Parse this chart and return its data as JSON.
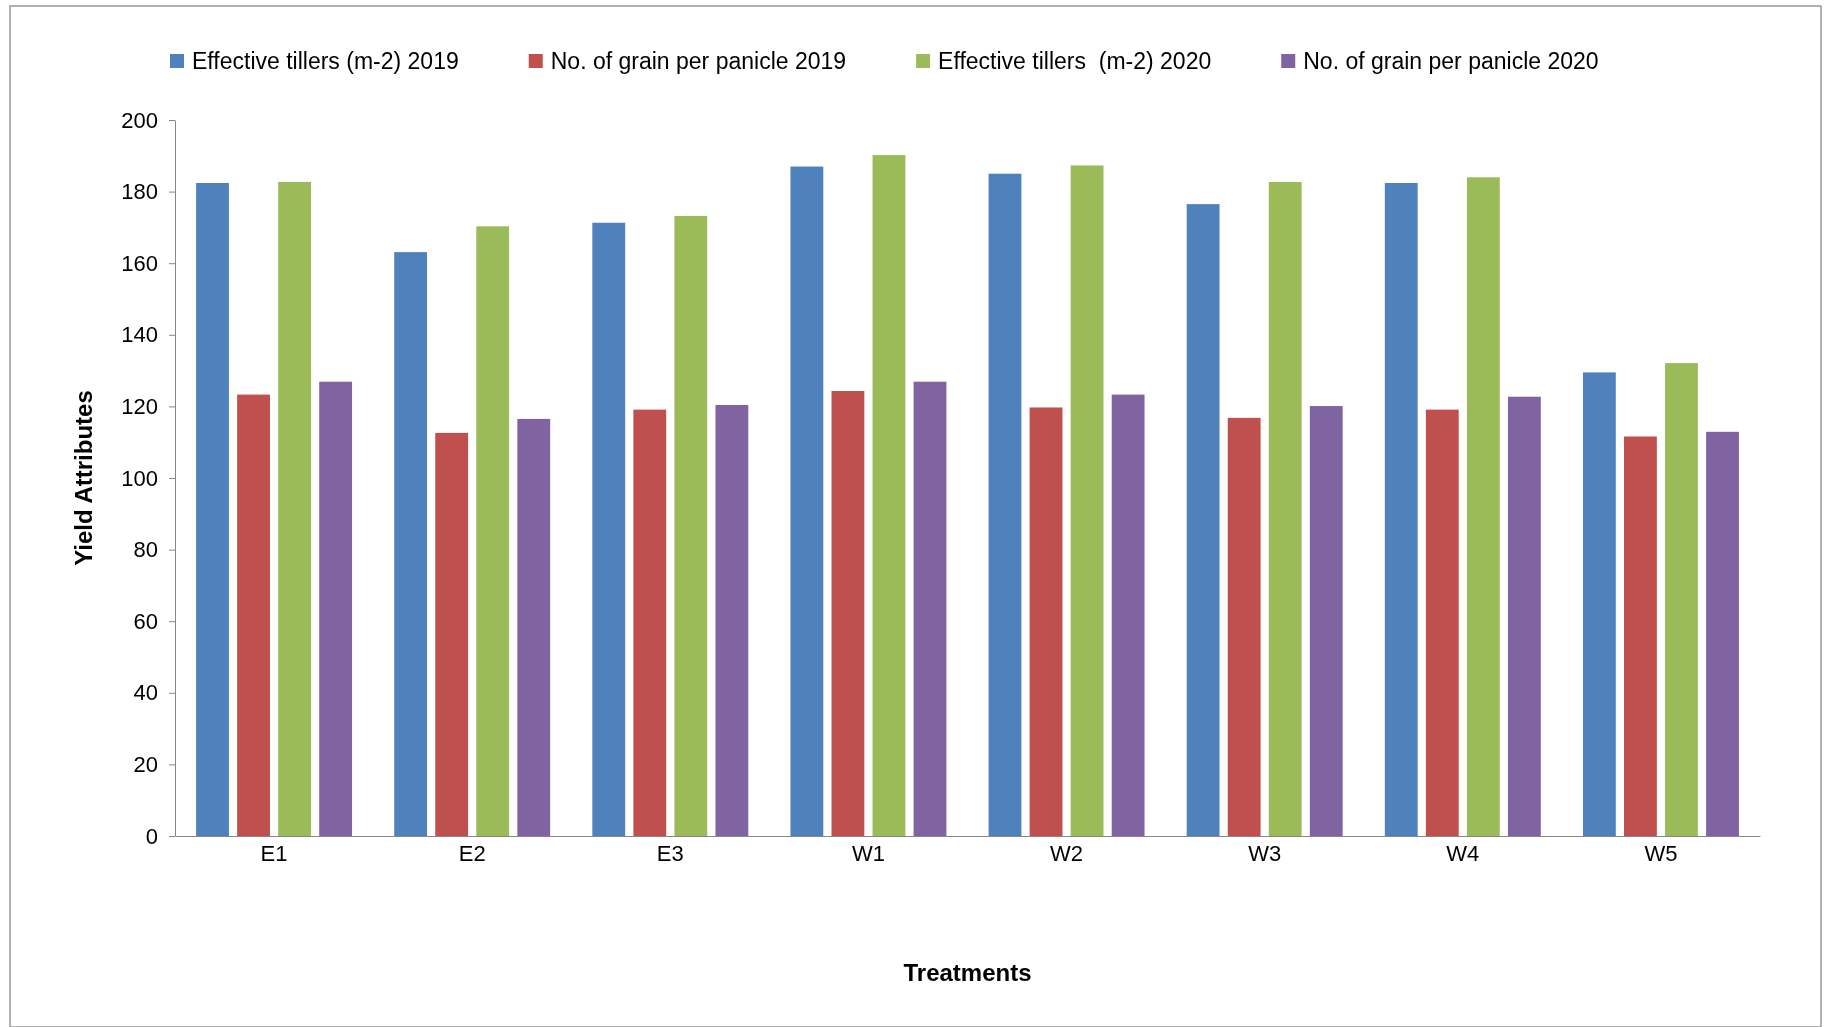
{
  "chart_data": {
    "type": "bar",
    "xlabel": "Treatments",
    "ylabel": "Yield Attributes",
    "categories": [
      "E1",
      "E2",
      "E3",
      "W1",
      "W2",
      "W3",
      "W4",
      "W5"
    ],
    "series": [
      {
        "name": "Effective tillers (m-2) 2019",
        "color": "#4f81bd",
        "values": [
          182.4,
          163.1,
          171.3,
          187,
          185,
          176.5,
          182.4,
          129.5
        ]
      },
      {
        "name": "No. of grain per panicle 2019",
        "color": "#c0504d",
        "values": [
          123.3,
          112.6,
          119.1,
          124.3,
          119.7,
          116.8,
          119.1,
          111.6
        ]
      },
      {
        "name": "Effective tillers  (m-2) 2020",
        "color": "#9bbb59",
        "values": [
          182.7,
          170.3,
          173.2,
          190.2,
          187.3,
          182.7,
          184,
          132.1
        ]
      },
      {
        "name": "No. of grain per panicle 2020",
        "color": "#8064a2",
        "values": [
          126.9,
          116.5,
          120.4,
          126.9,
          123.3,
          120.1,
          122.7,
          112.9
        ]
      }
    ],
    "ylim": [
      0,
      200
    ],
    "yticks": [
      0,
      20,
      40,
      60,
      80,
      100,
      120,
      140,
      160,
      180,
      200
    ],
    "grid": false,
    "legend": "top"
  }
}
